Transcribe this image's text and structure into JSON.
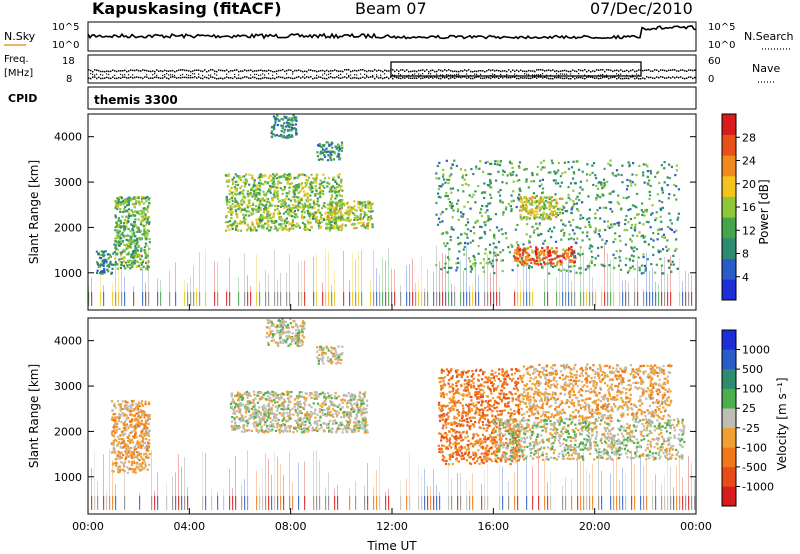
{
  "header": {
    "station": "Kapuskasing (fitACF)",
    "beam": "Beam 07",
    "date": "07/Dec/2010"
  },
  "noise_panel": {
    "left_label": "N.Sky",
    "right_label": "N.Search",
    "ticks_left": [
      "10^5",
      "10^0"
    ],
    "ticks_right": [
      "10^5",
      "10^0"
    ]
  },
  "freq_panel": {
    "left_label_top": "Freq.",
    "left_label_unit": "[MHz]",
    "left_ticks": [
      "18",
      "8"
    ],
    "right_label": "Nave",
    "right_ticks": [
      "60",
      "0"
    ]
  },
  "cpid_panel": {
    "label": "CPID",
    "mode": "themis 3300"
  },
  "colors": {
    "power_scale": [
      "#1c2fd6",
      "#2a5cc9",
      "#2d8c6f",
      "#46a54b",
      "#8fc63a",
      "#f2c41c",
      "#f08a1c",
      "#e8501b",
      "#d81b1b"
    ],
    "velocity_scale": [
      "#1c2fd6",
      "#2a5cc9",
      "#2d8c6f",
      "#4bb04b",
      "#bdbdb5",
      "#f0a030",
      "#f07818",
      "#e84a18",
      "#d81b1b"
    ]
  },
  "chart_data": [
    {
      "type": "heatmap",
      "panel": "power",
      "ylabel": "Slant Range [km]",
      "ylim": [
        180,
        4500
      ],
      "yticks": [
        "1000",
        "2000",
        "3000",
        "4000"
      ],
      "xlim": [
        "00:00",
        "24:00"
      ],
      "colorbar_label": "Power [dB]",
      "colorbar_ticks": [
        "4",
        "8",
        "12",
        "16",
        "20",
        "24",
        "28"
      ],
      "colorbar_range": [
        0,
        30
      ],
      "regions": [
        {
          "t": [
            1.0,
            2.4
          ],
          "range": [
            1100,
            2700
          ],
          "power": 12
        },
        {
          "t": [
            0.3,
            1.0
          ],
          "range": [
            1000,
            1500
          ],
          "power": 8
        },
        {
          "t": [
            5.4,
            10.0
          ],
          "range": [
            1950,
            3200
          ],
          "power": 14
        },
        {
          "t": [
            9.4,
            11.2
          ],
          "range": [
            2000,
            2600
          ],
          "power": 16
        },
        {
          "t": [
            7.2,
            8.2
          ],
          "range": [
            4000,
            4500
          ],
          "power": 8
        },
        {
          "t": [
            9.0,
            10.0
          ],
          "range": [
            3500,
            3900
          ],
          "power": 8
        },
        {
          "t": [
            13.7,
            23.3
          ],
          "range": [
            1000,
            3500
          ],
          "power": 10
        },
        {
          "t": [
            16.8,
            19.2
          ],
          "range": [
            1200,
            1600
          ],
          "power": 26
        },
        {
          "t": [
            17.0,
            18.6
          ],
          "range": [
            2200,
            2700
          ],
          "power": 18
        }
      ]
    },
    {
      "type": "heatmap",
      "panel": "velocity",
      "ylabel": "Slant Range [km]",
      "ylim": [
        180,
        4500
      ],
      "yticks": [
        "1000",
        "2000",
        "3000",
        "4000"
      ],
      "xlim": [
        "00:00",
        "24:00"
      ],
      "xticks": [
        "00:00",
        "04:00",
        "08:00",
        "12:00",
        "16:00",
        "20:00",
        "00:00"
      ],
      "xlabel": "Time UT",
      "colorbar_label": "Velocity [m s⁻¹]",
      "colorbar_ticks": [
        "1000",
        "500",
        "100",
        "25",
        "-25",
        "-100",
        "-500",
        "-1000"
      ],
      "regions": [
        {
          "t": [
            0.9,
            2.4
          ],
          "range": [
            1100,
            2700
          ],
          "velocity": -150
        },
        {
          "t": [
            5.6,
            11.0
          ],
          "range": [
            2000,
            2900
          ],
          "velocity": 0
        },
        {
          "t": [
            7.0,
            8.5
          ],
          "range": [
            3900,
            4500
          ],
          "velocity": 0
        },
        {
          "t": [
            9.0,
            10.0
          ],
          "range": [
            3500,
            3900
          ],
          "velocity": 0
        },
        {
          "t": [
            13.8,
            17.0
          ],
          "range": [
            1300,
            3400
          ],
          "velocity": -250
        },
        {
          "t": [
            16.0,
            23.5
          ],
          "range": [
            1400,
            2300
          ],
          "velocity": 0
        },
        {
          "t": [
            17.0,
            23.0
          ],
          "range": [
            2300,
            3500
          ],
          "velocity": -200
        }
      ]
    }
  ]
}
